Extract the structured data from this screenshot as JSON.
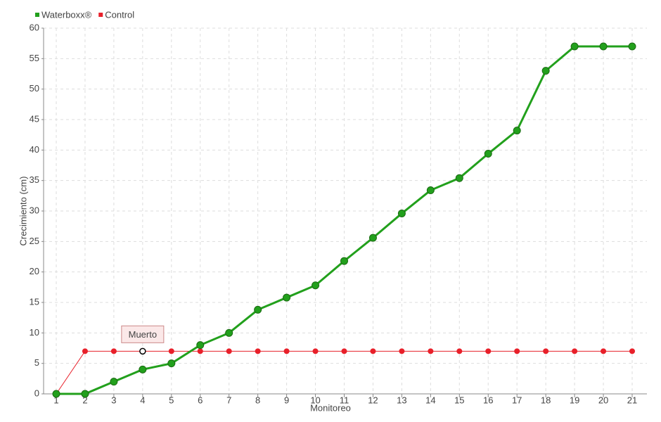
{
  "chart_data": {
    "type": "line",
    "x_label": "Monitoreo",
    "y_label": "Crecimiento (cm)",
    "categories": [
      "1",
      "2",
      "3",
      "4",
      "5",
      "6",
      "7",
      "8",
      "9",
      "10",
      "11",
      "12",
      "13",
      "14",
      "15",
      "16",
      "17",
      "18",
      "19",
      "20",
      "21"
    ],
    "series": [
      {
        "name": "Waterboxx®",
        "color": "#22a01c",
        "values": [
          0,
          0,
          2,
          4,
          5,
          8,
          10,
          13.8,
          15.8,
          17.8,
          21.8,
          25.6,
          29.6,
          33.4,
          35.4,
          39.4,
          43.2,
          53,
          57,
          57,
          57
        ]
      },
      {
        "name": "Control",
        "color": "#e8202a",
        "values": [
          0,
          7,
          7,
          7,
          7,
          7,
          7,
          7,
          7,
          7,
          7,
          7,
          7,
          7,
          7,
          7,
          7,
          7,
          7,
          7,
          7
        ]
      }
    ],
    "annotation": {
      "text": "Muerto",
      "x": "4",
      "y": 7
    },
    "ylim": [
      0,
      60
    ],
    "yticks": [
      0,
      5,
      10,
      15,
      20,
      25,
      30,
      35,
      40,
      45,
      50,
      55,
      60
    ],
    "grid": true,
    "legend": "top-left"
  }
}
